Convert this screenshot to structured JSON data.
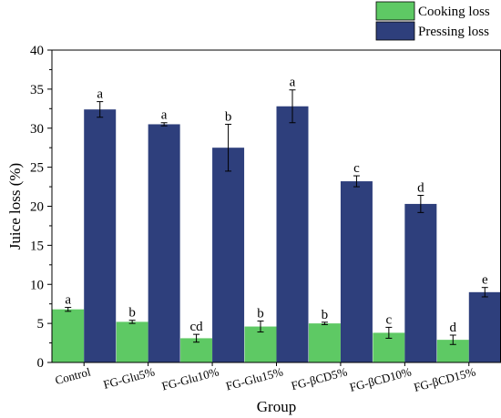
{
  "chart_data": {
    "type": "bar",
    "title": "",
    "xlabel": "Group",
    "ylabel": "Juice loss (%)",
    "ylim": [
      0,
      40
    ],
    "yticks": [
      0,
      5,
      10,
      15,
      20,
      25,
      30,
      35,
      40
    ],
    "grid": false,
    "legend_position": "top-right",
    "categories": [
      "Control",
      "FG-Glu5%",
      "FG-Glu10%",
      "FG-Glu15%",
      "FG-βCD5%",
      "FG-βCD10%",
      "FG-βCD15%"
    ],
    "series": [
      {
        "name": "Cooking loss",
        "color": "#5ec964",
        "values": [
          6.8,
          5.2,
          3.1,
          4.6,
          5.0,
          3.8,
          2.9
        ],
        "errors": [
          0.25,
          0.2,
          0.5,
          0.7,
          0.15,
          0.7,
          0.6
        ],
        "labels": [
          "a",
          "b",
          "cd",
          "b",
          "b",
          "c",
          "d"
        ]
      },
      {
        "name": "Pressing loss",
        "color": "#2e3f7c",
        "values": [
          32.4,
          30.5,
          27.5,
          32.8,
          23.2,
          20.3,
          9.0
        ],
        "errors": [
          1.0,
          0.2,
          3.0,
          2.1,
          0.7,
          1.1,
          0.6
        ],
        "labels": [
          "a",
          "a",
          "b",
          "a",
          "c",
          "d",
          "e"
        ]
      }
    ]
  }
}
